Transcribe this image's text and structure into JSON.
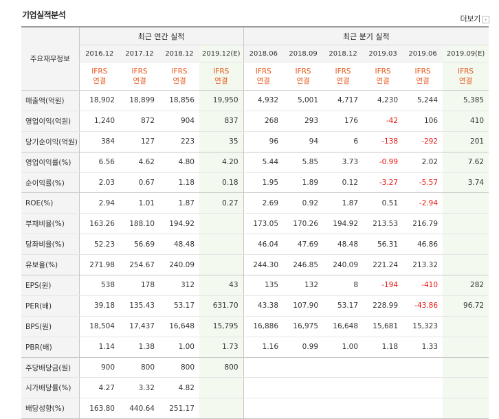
{
  "title": "기업실적분석",
  "more_label": "더보기",
  "row_header_label": "주요재무정보",
  "group_annual": "최근 연간 실적",
  "group_quarter": "최근 분기 실적",
  "periods": [
    "2016.12",
    "2017.12",
    "2018.12",
    "2019.12(E)",
    "2018.06",
    "2018.09",
    "2018.12",
    "2019.03",
    "2019.06",
    "2019.09(E)"
  ],
  "ifrs_top": "IFRS",
  "ifrs_bottom": "연결",
  "rows": [
    {
      "label": "매출액(억원)",
      "values": [
        "18,902",
        "18,899",
        "18,856",
        "19,950",
        "4,932",
        "5,001",
        "4,717",
        "4,230",
        "5,244",
        "5,385"
      ]
    },
    {
      "label": "영업이익(억원)",
      "values": [
        "1,240",
        "872",
        "904",
        "837",
        "268",
        "293",
        "176",
        "-42",
        "106",
        "410"
      ]
    },
    {
      "label": "당기순이익(억원)",
      "values": [
        "384",
        "127",
        "223",
        "35",
        "96",
        "94",
        "6",
        "-138",
        "-292",
        "201"
      ]
    },
    {
      "label": "영업이익률(%)",
      "values": [
        "6.56",
        "4.62",
        "4.80",
        "4.20",
        "5.44",
        "5.85",
        "3.73",
        "-0.99",
        "2.02",
        "7.62"
      ]
    },
    {
      "label": "순이익률(%)",
      "values": [
        "2.03",
        "0.67",
        "1.18",
        "0.18",
        "1.95",
        "1.89",
        "0.12",
        "-3.27",
        "-5.57",
        "3.74"
      ]
    },
    {
      "label": "ROE(%)",
      "values": [
        "2.94",
        "1.01",
        "1.87",
        "0.27",
        "2.69",
        "0.92",
        "1.87",
        "0.51",
        "-2.94",
        ""
      ]
    },
    {
      "label": "부채비율(%)",
      "values": [
        "163.26",
        "188.10",
        "194.92",
        "",
        "173.05",
        "170.26",
        "194.92",
        "213.53",
        "216.79",
        ""
      ]
    },
    {
      "label": "당좌비율(%)",
      "values": [
        "52.23",
        "56.69",
        "48.48",
        "",
        "46.04",
        "47.69",
        "48.48",
        "56.31",
        "46.86",
        ""
      ]
    },
    {
      "label": "유보율(%)",
      "values": [
        "271.98",
        "254.67",
        "240.09",
        "",
        "244.30",
        "246.85",
        "240.09",
        "221.24",
        "213.32",
        ""
      ]
    },
    {
      "label": "EPS(원)",
      "values": [
        "538",
        "178",
        "312",
        "43",
        "135",
        "132",
        "8",
        "-194",
        "-410",
        "282"
      ]
    },
    {
      "label": "PER(배)",
      "values": [
        "39.18",
        "135.43",
        "53.17",
        "631.70",
        "43.38",
        "107.90",
        "53.17",
        "228.99",
        "-43.86",
        "96.72"
      ]
    },
    {
      "label": "BPS(원)",
      "values": [
        "18,504",
        "17,437",
        "16,648",
        "15,795",
        "16,886",
        "16,975",
        "16,648",
        "15,681",
        "15,323",
        ""
      ]
    },
    {
      "label": "PBR(배)",
      "values": [
        "1.14",
        "1.38",
        "1.00",
        "1.73",
        "1.16",
        "0.99",
        "1.00",
        "1.18",
        "1.33",
        ""
      ]
    },
    {
      "label": "주당배당금(원)",
      "values": [
        "900",
        "800",
        "800",
        "800",
        "",
        "",
        "",
        "",
        "",
        ""
      ]
    },
    {
      "label": "시가배당률(%)",
      "values": [
        "4.27",
        "3.32",
        "4.82",
        "",
        "",
        "",
        "",
        "",
        "",
        ""
      ]
    },
    {
      "label": "배당성향(%)",
      "values": [
        "163.80",
        "440.64",
        "251.17",
        "",
        "",
        "",
        "",
        "",
        "",
        ""
      ]
    }
  ],
  "colors": {
    "ifrs": "#e8571a",
    "negative": "#e8150f",
    "estimate_bg": "#f3f9ee",
    "header_bg": "#f4f4f4"
  }
}
